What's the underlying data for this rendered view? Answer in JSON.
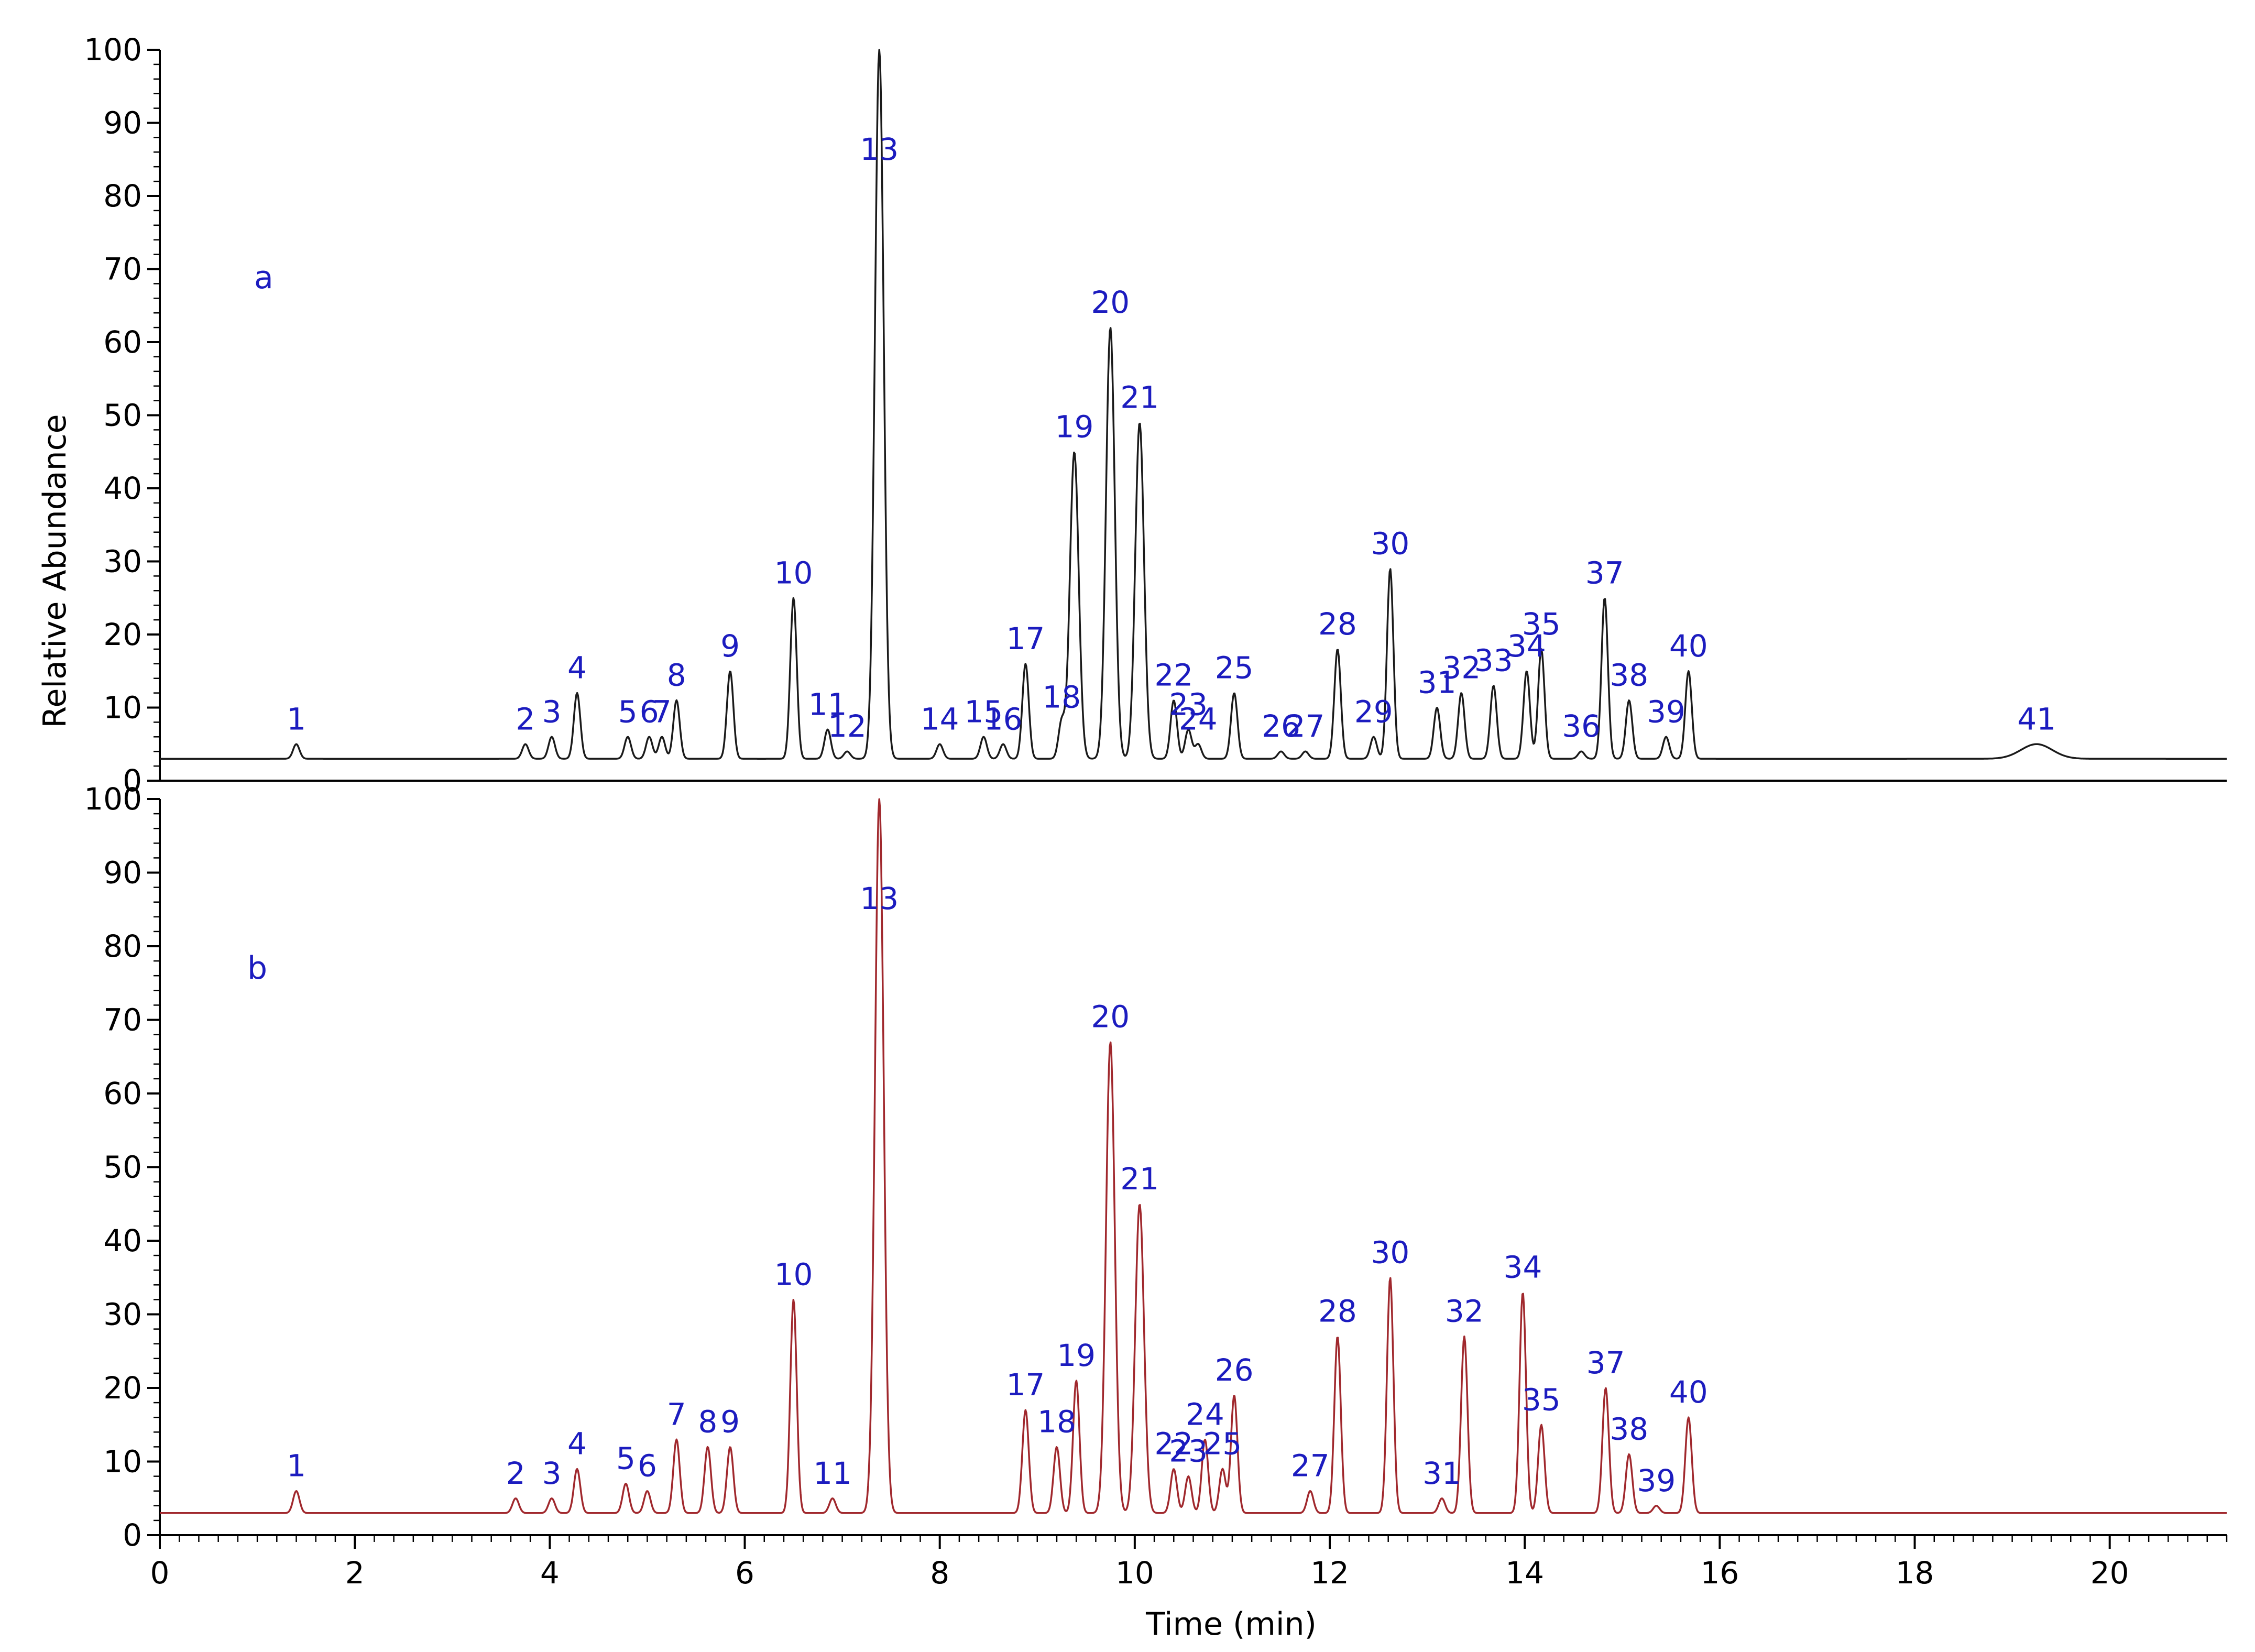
{
  "chart_data": {
    "type": "line",
    "xlabel": "Time (min)",
    "ylabel": "Relative Abundance",
    "xlim": [
      0,
      21.2
    ],
    "ylim": [
      0,
      100
    ],
    "x_ticks": [
      "0",
      "2",
      "4",
      "6",
      "8",
      "10",
      "12",
      "14",
      "16",
      "18",
      "20"
    ],
    "y_ticks": [
      "0",
      "10",
      "20",
      "30",
      "40",
      "50",
      "60",
      "70",
      "80",
      "90",
      "100"
    ],
    "label_color": "#1c1cbf",
    "panels": [
      {
        "label": "a",
        "color": "#1a1a1a",
        "baseline": 3,
        "peaks": [
          {
            "n": "1",
            "x": 1.4,
            "y": 5
          },
          {
            "n": "2",
            "x": 3.75,
            "y": 5
          },
          {
            "n": "3",
            "x": 4.02,
            "y": 6
          },
          {
            "n": "4",
            "x": 4.28,
            "y": 12
          },
          {
            "n": "5",
            "x": 4.8,
            "y": 6
          },
          {
            "n": "6",
            "x": 5.02,
            "y": 6
          },
          {
            "n": "7",
            "x": 5.15,
            "y": 6
          },
          {
            "n": "8",
            "x": 5.3,
            "y": 11
          },
          {
            "n": "9",
            "x": 5.85,
            "y": 15
          },
          {
            "n": "10",
            "x": 6.5,
            "y": 25
          },
          {
            "n": "11",
            "x": 6.85,
            "y": 7
          },
          {
            "n": "12",
            "x": 7.05,
            "y": 4
          },
          {
            "n": "13",
            "x": 7.38,
            "y": 100
          },
          {
            "n": "14",
            "x": 8.0,
            "y": 5
          },
          {
            "n": "15",
            "x": 8.45,
            "y": 6
          },
          {
            "n": "16",
            "x": 8.65,
            "y": 5
          },
          {
            "n": "17",
            "x": 8.88,
            "y": 16
          },
          {
            "n": "18",
            "x": 9.25,
            "y": 8
          },
          {
            "n": "19",
            "x": 9.38,
            "y": 45
          },
          {
            "n": "20",
            "x": 9.75,
            "y": 62
          },
          {
            "n": "21",
            "x": 10.05,
            "y": 49
          },
          {
            "n": "22",
            "x": 10.4,
            "y": 11
          },
          {
            "n": "23",
            "x": 10.55,
            "y": 7
          },
          {
            "n": "24",
            "x": 10.65,
            "y": 5
          },
          {
            "n": "25",
            "x": 11.02,
            "y": 12
          },
          {
            "n": "26",
            "x": 11.5,
            "y": 4
          },
          {
            "n": "27",
            "x": 11.75,
            "y": 4
          },
          {
            "n": "28",
            "x": 12.08,
            "y": 18
          },
          {
            "n": "29",
            "x": 12.45,
            "y": 6
          },
          {
            "n": "30",
            "x": 12.62,
            "y": 29
          },
          {
            "n": "31",
            "x": 13.1,
            "y": 10
          },
          {
            "n": "32",
            "x": 13.35,
            "y": 12
          },
          {
            "n": "33",
            "x": 13.68,
            "y": 13
          },
          {
            "n": "34",
            "x": 14.02,
            "y": 15
          },
          {
            "n": "35",
            "x": 14.17,
            "y": 18
          },
          {
            "n": "36",
            "x": 14.58,
            "y": 4
          },
          {
            "n": "37",
            "x": 14.82,
            "y": 25
          },
          {
            "n": "38",
            "x": 15.07,
            "y": 11
          },
          {
            "n": "39",
            "x": 15.45,
            "y": 6
          },
          {
            "n": "40",
            "x": 15.68,
            "y": 15
          },
          {
            "n": "41",
            "x": 19.25,
            "y": 5
          }
        ]
      },
      {
        "label": "b",
        "color": "#a0282d",
        "baseline": 3,
        "peaks": [
          {
            "n": "1",
            "x": 1.4,
            "y": 6
          },
          {
            "n": "2",
            "x": 3.65,
            "y": 5
          },
          {
            "n": "3",
            "x": 4.02,
            "y": 5
          },
          {
            "n": "4",
            "x": 4.28,
            "y": 9
          },
          {
            "n": "5",
            "x": 4.78,
            "y": 7
          },
          {
            "n": "6",
            "x": 5.0,
            "y": 6
          },
          {
            "n": "7",
            "x": 5.3,
            "y": 13
          },
          {
            "n": "8",
            "x": 5.62,
            "y": 12
          },
          {
            "n": "9",
            "x": 5.85,
            "y": 12
          },
          {
            "n": "10",
            "x": 6.5,
            "y": 32
          },
          {
            "n": "11",
            "x": 6.9,
            "y": 5
          },
          {
            "n": "13",
            "x": 7.38,
            "y": 100
          },
          {
            "n": "17",
            "x": 8.88,
            "y": 17
          },
          {
            "n": "18",
            "x": 9.2,
            "y": 12
          },
          {
            "n": "19",
            "x": 9.4,
            "y": 21
          },
          {
            "n": "20",
            "x": 9.75,
            "y": 67
          },
          {
            "n": "21",
            "x": 10.05,
            "y": 45
          },
          {
            "n": "22",
            "x": 10.4,
            "y": 9
          },
          {
            "n": "23",
            "x": 10.55,
            "y": 8
          },
          {
            "n": "24",
            "x": 10.72,
            "y": 13
          },
          {
            "n": "25",
            "x": 10.9,
            "y": 9
          },
          {
            "n": "26",
            "x": 11.02,
            "y": 19
          },
          {
            "n": "27",
            "x": 11.8,
            "y": 6
          },
          {
            "n": "28",
            "x": 12.08,
            "y": 27
          },
          {
            "n": "30",
            "x": 12.62,
            "y": 35
          },
          {
            "n": "31",
            "x": 13.15,
            "y": 5
          },
          {
            "n": "32",
            "x": 13.38,
            "y": 27
          },
          {
            "n": "34",
            "x": 13.98,
            "y": 33
          },
          {
            "n": "35",
            "x": 14.17,
            "y": 15
          },
          {
            "n": "37",
            "x": 14.83,
            "y": 20
          },
          {
            "n": "38",
            "x": 15.07,
            "y": 11
          },
          {
            "n": "39",
            "x": 15.35,
            "y": 4
          },
          {
            "n": "40",
            "x": 15.68,
            "y": 16
          }
        ]
      }
    ]
  }
}
